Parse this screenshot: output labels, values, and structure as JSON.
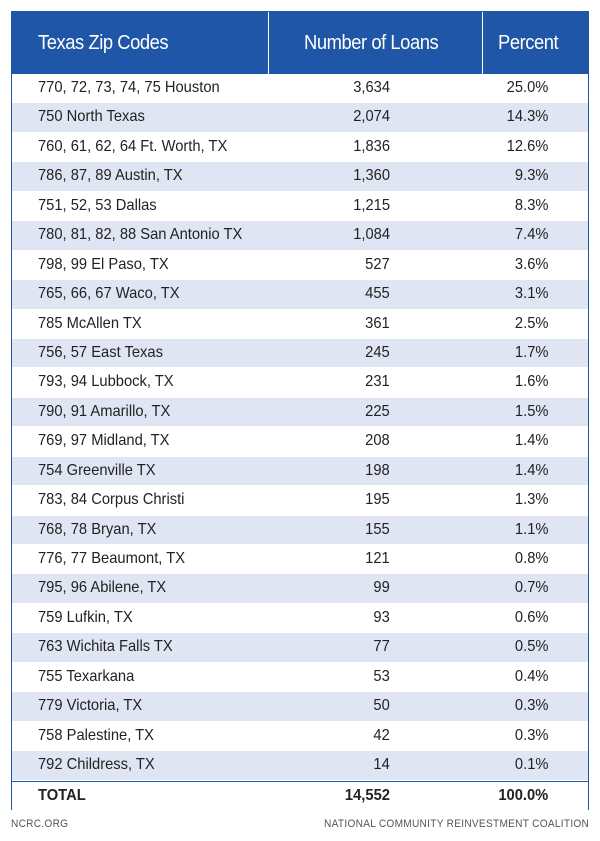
{
  "chart_data": {
    "type": "table",
    "title": "",
    "columns": [
      "Texas Zip Codes",
      "Number of Loans",
      "Percent"
    ],
    "rows": [
      {
        "zip": "770, 72, 73, 74, 75 Houston",
        "loans": "3,634",
        "percent": "25.0%"
      },
      {
        "zip": "750 North Texas",
        "loans": "2,074",
        "percent": "14.3%"
      },
      {
        "zip": "760, 61, 62, 64 Ft. Worth, TX",
        "loans": "1,836",
        "percent": "12.6%"
      },
      {
        "zip": "786, 87, 89 Austin, TX",
        "loans": "1,360",
        "percent": "9.3%"
      },
      {
        "zip": "751, 52, 53 Dallas",
        "loans": "1,215",
        "percent": "8.3%"
      },
      {
        "zip": "780, 81, 82, 88 San Antonio TX",
        "loans": "1,084",
        "percent": "7.4%"
      },
      {
        "zip": "798, 99 El Paso, TX",
        "loans": "527",
        "percent": "3.6%"
      },
      {
        "zip": "765, 66, 67 Waco, TX",
        "loans": "455",
        "percent": "3.1%"
      },
      {
        "zip": "785 McAllen TX",
        "loans": "361",
        "percent": "2.5%"
      },
      {
        "zip": "756, 57 East Texas",
        "loans": "245",
        "percent": "1.7%"
      },
      {
        "zip": "793, 94 Lubbock, TX",
        "loans": "231",
        "percent": "1.6%"
      },
      {
        "zip": "790, 91 Amarillo, TX",
        "loans": "225",
        "percent": "1.5%"
      },
      {
        "zip": "769, 97 Midland, TX",
        "loans": "208",
        "percent": "1.4%"
      },
      {
        "zip": "754 Greenville TX",
        "loans": "198",
        "percent": "1.4%"
      },
      {
        "zip": "783, 84 Corpus Christi",
        "loans": "195",
        "percent": "1.3%"
      },
      {
        "zip": "768, 78 Bryan, TX",
        "loans": "155",
        "percent": "1.1%"
      },
      {
        "zip": "776, 77 Beaumont, TX",
        "loans": "121",
        "percent": "0.8%"
      },
      {
        "zip": "795, 96 Abilene, TX",
        "loans": "99",
        "percent": "0.7%"
      },
      {
        "zip": "759 Lufkin, TX",
        "loans": "93",
        "percent": "0.6%"
      },
      {
        "zip": "763 Wichita Falls TX",
        "loans": "77",
        "percent": "0.5%"
      },
      {
        "zip": "755 Texarkana",
        "loans": "53",
        "percent": "0.4%"
      },
      {
        "zip": "779 Victoria, TX",
        "loans": "50",
        "percent": "0.3%"
      },
      {
        "zip": "758 Palestine, TX",
        "loans": "42",
        "percent": "0.3%"
      },
      {
        "zip": "792 Childress, TX",
        "loans": "14",
        "percent": "0.1%"
      }
    ],
    "total": {
      "label": "TOTAL",
      "loans": "14,552",
      "percent": "100.0%"
    }
  },
  "colors": {
    "header_bg": "#1f56a8",
    "header_text": "#ffffff",
    "stripe": "#e0e5f4",
    "row_bg": "#ffffff"
  },
  "footer": {
    "left": "NCRC.ORG",
    "right": "NATIONAL COMMUNITY REINVESTMENT COALITION"
  }
}
